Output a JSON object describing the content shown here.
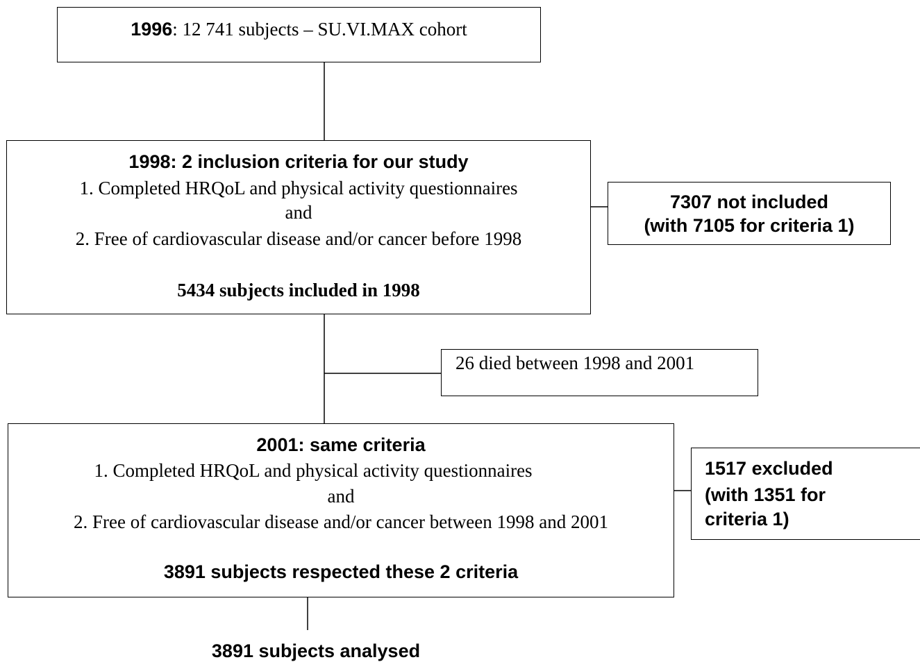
{
  "cohort": {
    "year": "1996",
    "text": ": 12 741 subjects – SU.VI.MAX cohort"
  },
  "inclusion": {
    "year": "1998",
    "heading": ": 2 inclusion criteria for our study",
    "criteria": [
      "1. Completed HRQoL and physical activity questionnaires",
      "and",
      "2. Free of cardiovascular disease and/or cancer before 1998"
    ],
    "result": "5434 subjects included in 1998"
  },
  "not_included": {
    "lines": [
      "7307 not included",
      "(with 7105 for criteria 1)"
    ]
  },
  "died": {
    "text": "26 died between 1998 and 2001"
  },
  "followup": {
    "year": "2001",
    "heading": ": same criteria",
    "criteria": [
      "1. Completed HRQoL and physical activity questionnaires",
      "and",
      "2. Free of cardiovascular disease and/or cancer between 1998 and 2001"
    ],
    "result": "3891 subjects respected these 2 criteria"
  },
  "excluded": {
    "lines": [
      "1517 excluded",
      "(with 1351 for",
      "criteria 1)"
    ]
  },
  "analysed": {
    "text": "3891 subjects analysed"
  }
}
